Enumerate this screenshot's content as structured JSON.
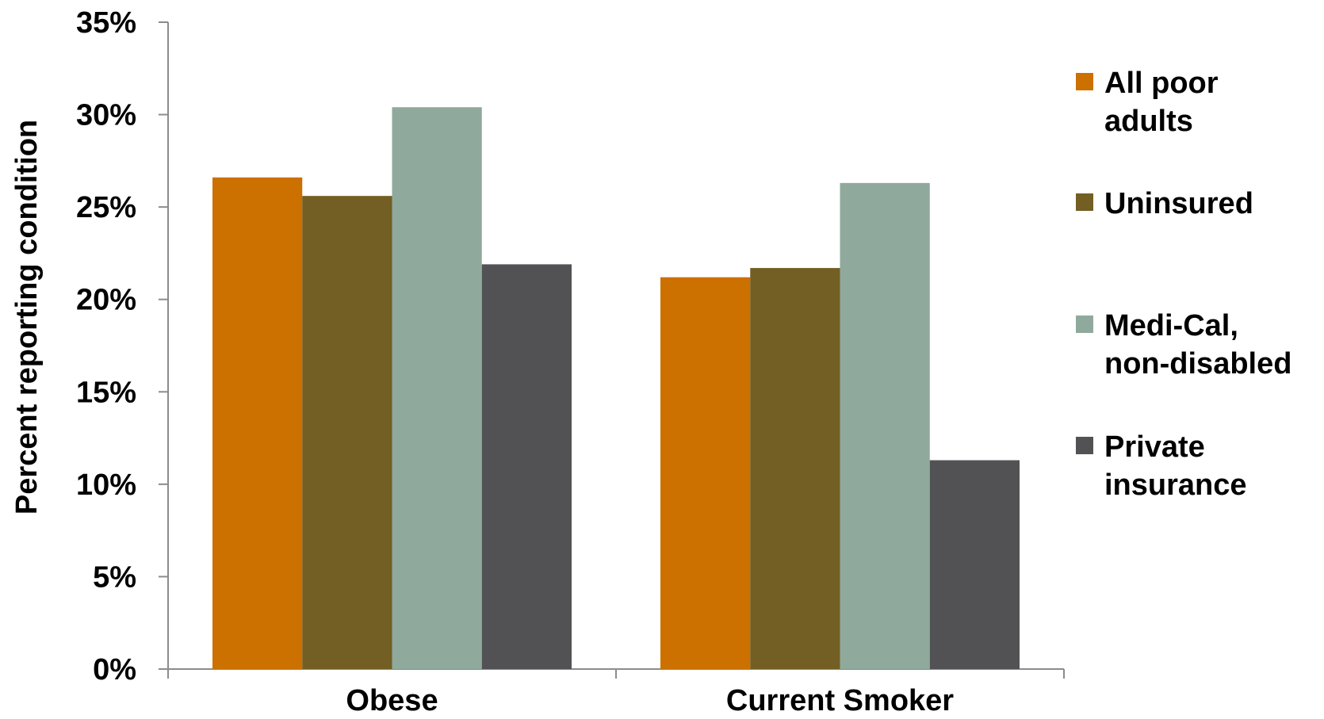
{
  "chart_data": {
    "type": "bar",
    "title": "",
    "xlabel": "",
    "ylabel": "Percent reporting condition",
    "ylim": [
      0,
      35
    ],
    "yticks": [
      {
        "value": 0,
        "label": "0%"
      },
      {
        "value": 5,
        "label": "5%"
      },
      {
        "value": 10,
        "label": "10%"
      },
      {
        "value": 15,
        "label": "15%"
      },
      {
        "value": 20,
        "label": "20%"
      },
      {
        "value": 25,
        "label": "25%"
      },
      {
        "value": 30,
        "label": "30%"
      },
      {
        "value": 35,
        "label": "35%"
      }
    ],
    "categories": [
      "Obese",
      "Current Smoker"
    ],
    "series": [
      {
        "name": "All poor adults",
        "legend_lines": [
          "All poor",
          "adults"
        ],
        "color": "#cc7000",
        "values": [
          26.6,
          21.2
        ]
      },
      {
        "name": "Uninsured",
        "legend_lines": [
          "Uninsured"
        ],
        "color": "#735f24",
        "values": [
          25.6,
          21.7
        ]
      },
      {
        "name": "Medi-Cal, non-disabled",
        "legend_lines": [
          "Medi-Cal,",
          "non-disabled"
        ],
        "color": "#8faa9c",
        "values": [
          30.4,
          26.3
        ]
      },
      {
        "name": "Private insurance",
        "legend_lines": [
          "Private",
          "insurance"
        ],
        "color": "#525254",
        "values": [
          21.9,
          11.3
        ]
      }
    ],
    "grid": false,
    "legend_position": "right"
  }
}
